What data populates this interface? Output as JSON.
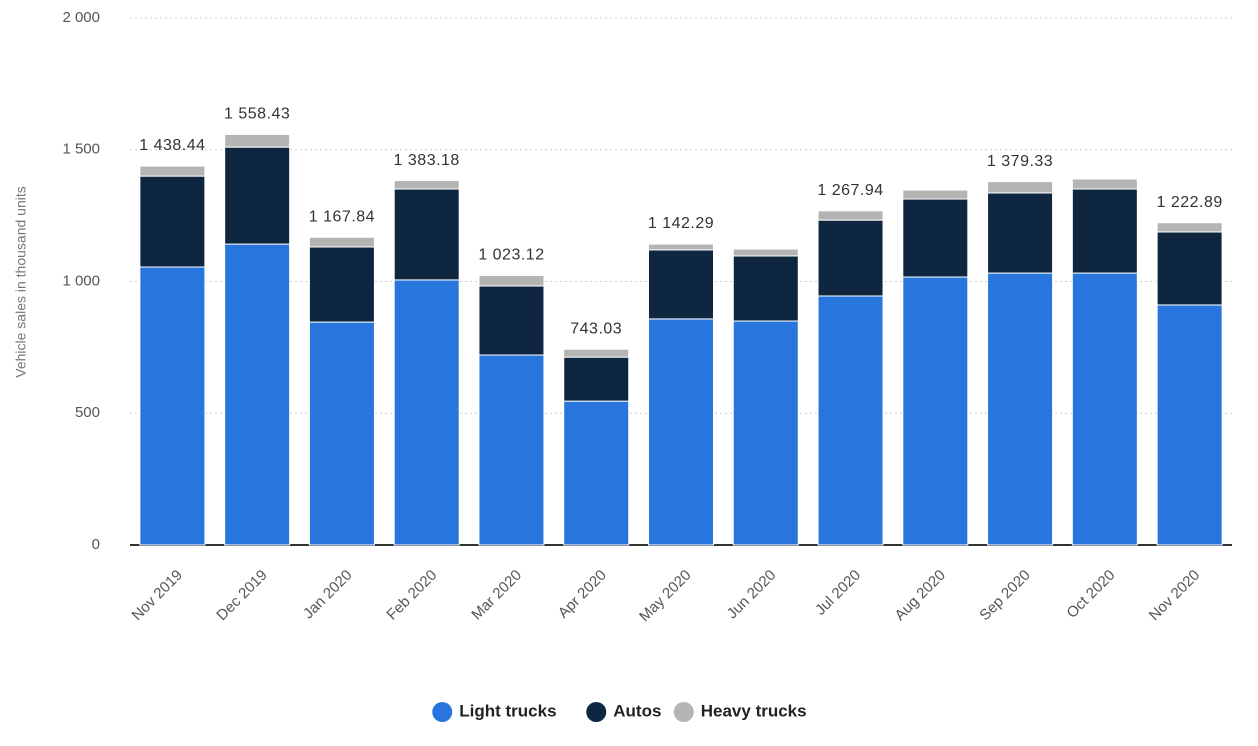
{
  "chart_data": {
    "type": "stacked-bar",
    "y_label": "Vehicle sales in thousand units",
    "categories": [
      "Nov 2019",
      "Dec 2019",
      "Jan 2020",
      "Feb 2020",
      "Mar 2020",
      "Apr 2020",
      "May 2020",
      "Jun 2020",
      "Jul 2020",
      "Aug 2020",
      "Sep 2020",
      "Oct 2020",
      "Nov 2020"
    ],
    "series": [
      {
        "name": "Light trucks",
        "color": "#2876dd",
        "values": [
          1055,
          1142,
          846,
          1006,
          721,
          546,
          858,
          850,
          945,
          1017,
          1032,
          1032,
          911
        ]
      },
      {
        "name": "Autos",
        "color": "#0f2640",
        "values": [
          345,
          368,
          285,
          345,
          262,
          167,
          262,
          247,
          288,
          296,
          304,
          319,
          277
        ]
      },
      {
        "name": "Heavy trucks",
        "color": "#b4b4b4",
        "values": [
          38,
          48,
          37,
          32,
          40,
          30,
          22,
          26,
          35,
          34,
          43,
          38,
          35
        ]
      }
    ],
    "totals": [
      1438.44,
      1558.43,
      1167.84,
      1383.18,
      1023.12,
      743.03,
      1142.29,
      null,
      1267.94,
      null,
      1379.33,
      null,
      1222.89
    ],
    "value_labels": [
      "1 438.44",
      "1 558.43",
      "1 167.84",
      "1 383.18",
      "1 023.12",
      "743.03",
      "1 142.29",
      null,
      "1 267.94",
      null,
      "1 379.33",
      null,
      "1 222.89"
    ],
    "ylim": [
      0,
      2000
    ],
    "yticks": [
      0,
      500,
      {
        "value": 1000,
        "label": "1 000"
      },
      {
        "value": 1500,
        "label": "1 500"
      },
      {
        "value": 2000,
        "label": "2 000"
      }
    ],
    "grid": true
  }
}
